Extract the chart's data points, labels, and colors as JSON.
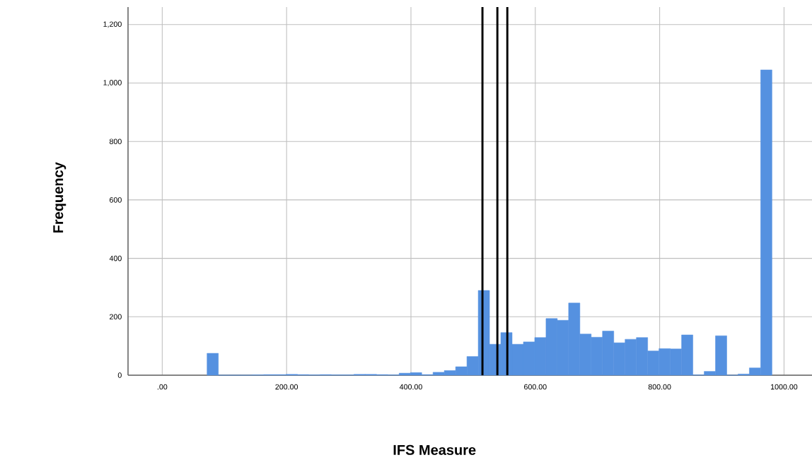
{
  "chart_data": {
    "type": "histogram",
    "xlabel": "IFS Measure",
    "ylabel": "Frequency",
    "color": "#5591e0",
    "bins": [
      72.1,
      90.27,
      108.44,
      126.61,
      144.78,
      162.95,
      181.12,
      199.29,
      217.46,
      235.63,
      253.8,
      271.97,
      290.14,
      308.31,
      326.48,
      344.65,
      362.82,
      380.99,
      399.16,
      417.33,
      435.5,
      453.67,
      471.84,
      490.01,
      508.18,
      526.35,
      544.52,
      562.69,
      580.86,
      599.03,
      617.2,
      635.37,
      653.54,
      671.71,
      689.88,
      708.05,
      726.22,
      744.39,
      762.56,
      780.73,
      798.9,
      817.07,
      835.24,
      853.41,
      871.58,
      889.75,
      907.92,
      926.09,
      944.26,
      962.43,
      980.6
    ],
    "values": [
      75,
      0,
      0,
      0,
      1,
      2,
      2,
      3,
      2,
      1,
      2,
      1,
      1,
      3,
      3,
      2,
      1,
      7,
      9,
      2,
      10,
      16,
      29,
      64,
      290,
      106,
      146,
      106,
      114,
      129,
      194,
      188,
      247,
      141,
      130,
      151,
      111,
      123,
      129,
      83,
      91,
      90,
      138,
      1,
      13,
      135,
      0,
      4,
      25,
      1045
    ],
    "xlim": [
      -55,
      1045
    ],
    "ylim": [
      0,
      1260
    ],
    "xticks": [
      {
        "value": 0,
        "label": ".00"
      },
      {
        "value": 200,
        "label": "200.00"
      },
      {
        "value": 400,
        "label": "400.00"
      },
      {
        "value": 600,
        "label": "600.00"
      },
      {
        "value": 800,
        "label": "800.00"
      },
      {
        "value": 1000,
        "label": "1000.00"
      }
    ],
    "yticks": [
      0,
      200,
      400,
      600,
      800,
      {
        "value": 1000,
        "label": "1,000"
      },
      {
        "value": 1200,
        "label": "1,200"
      }
    ],
    "grid": true,
    "ref_lines": [
      {
        "axis": "x",
        "value": 515,
        "color": "#000000"
      },
      {
        "axis": "x",
        "value": 539,
        "color": "#000000"
      },
      {
        "axis": "x",
        "value": 555,
        "color": "#000000"
      }
    ]
  }
}
